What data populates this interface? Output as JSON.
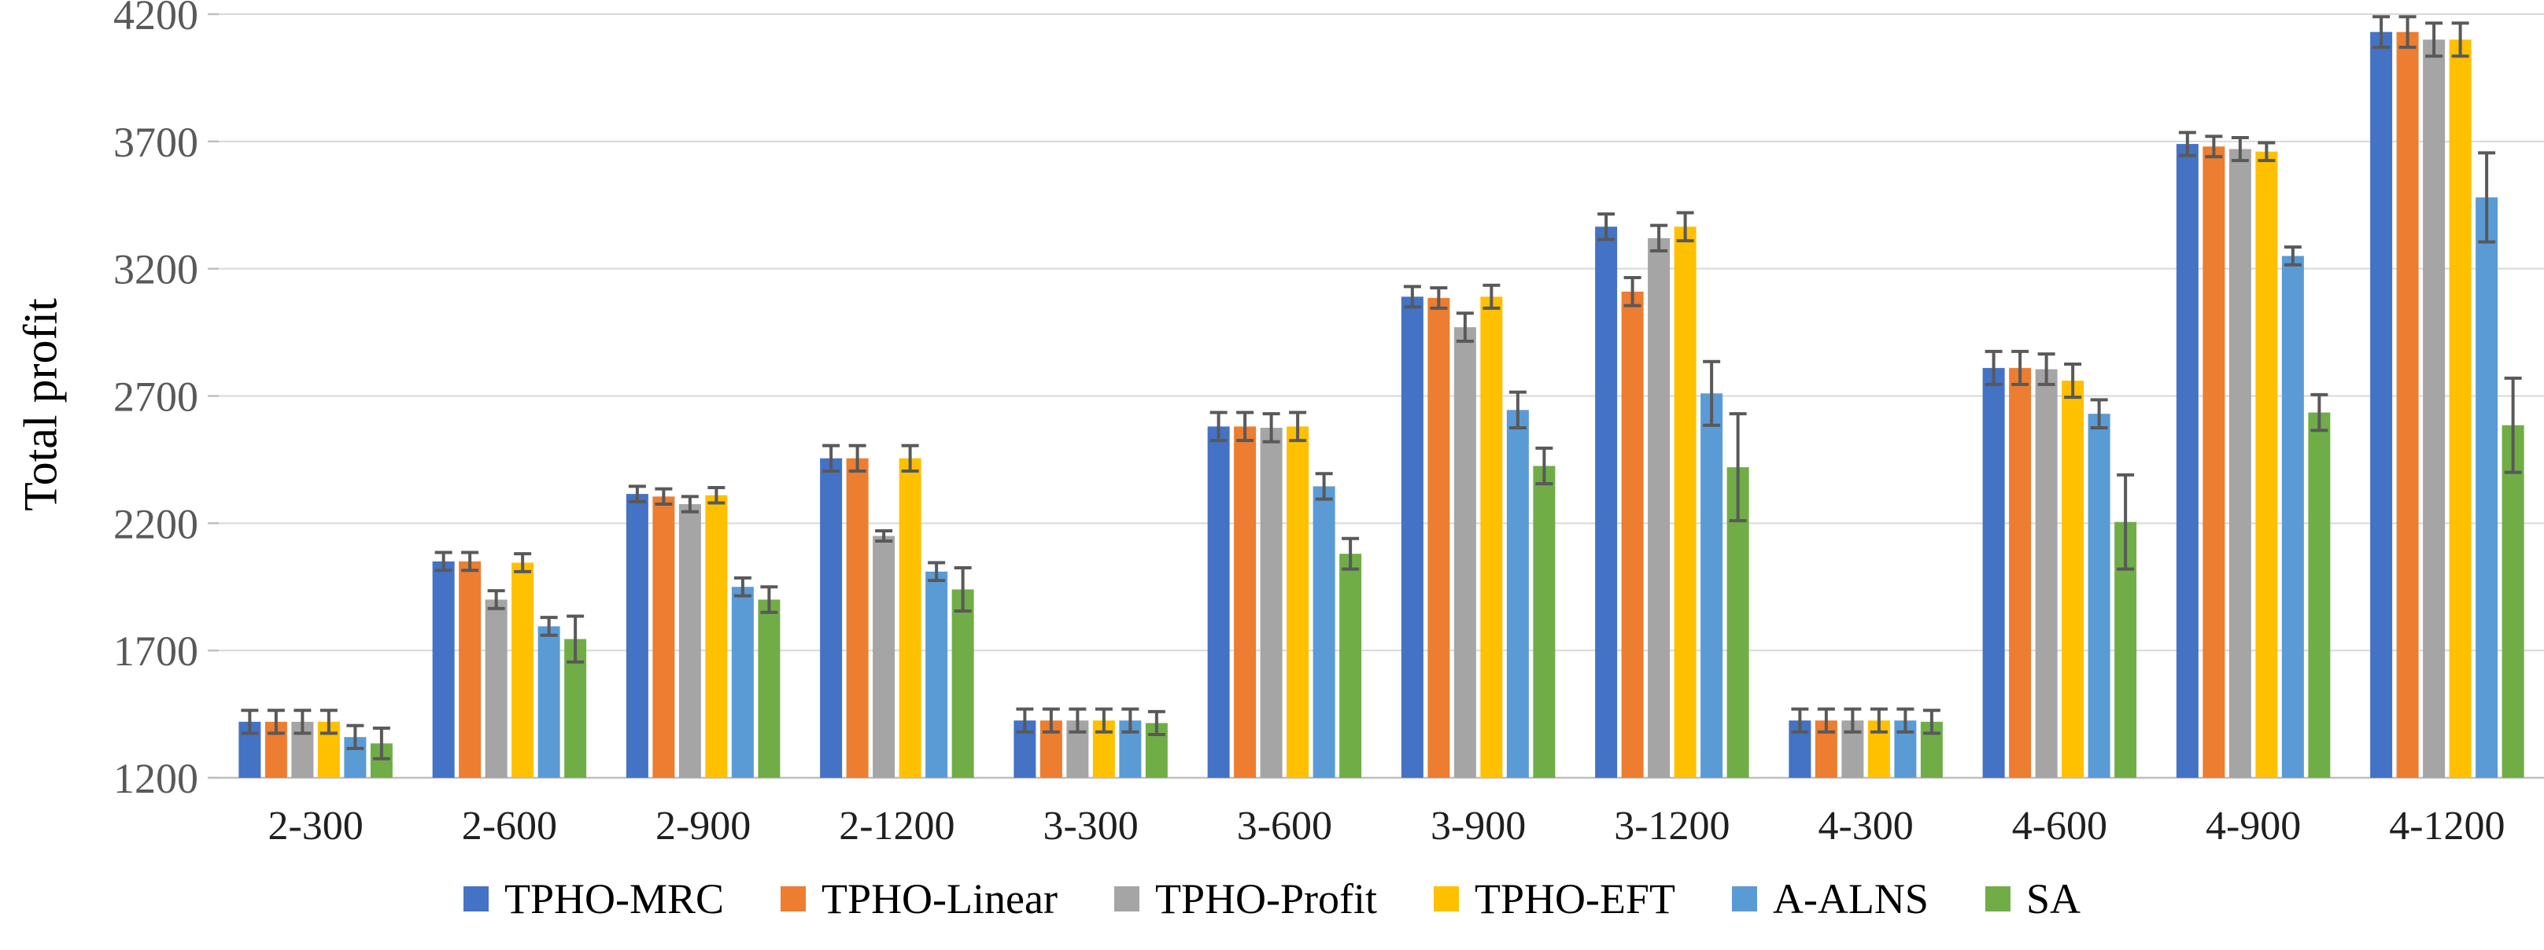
{
  "chart_data": {
    "type": "bar",
    "title": "",
    "ylabel": "Total profit",
    "xlabel": "",
    "ylim": [
      1200,
      4200
    ],
    "yticks": [
      1200,
      1700,
      2200,
      2700,
      3200,
      3700,
      4200
    ],
    "grid": true,
    "legend_position": "bottom",
    "error_bars": true,
    "categories": [
      "2-300",
      "2-600",
      "2-900",
      "2-1200",
      "3-300",
      "3-600",
      "3-900",
      "3-1200",
      "4-300",
      "4-600",
      "4-900",
      "4-1200"
    ],
    "series": [
      {
        "name": "TPHO-MRC",
        "color": "#4472C4",
        "values": [
          1420,
          2050,
          2315,
          2455,
          1425,
          2580,
          3090,
          3365,
          1425,
          2810,
          3690,
          4130
        ],
        "errors": [
          45,
          35,
          30,
          50,
          45,
          55,
          40,
          50,
          45,
          65,
          45,
          60
        ]
      },
      {
        "name": "TPHO-Linear",
        "color": "#ED7D31",
        "values": [
          1420,
          2050,
          2305,
          2455,
          1425,
          2580,
          3085,
          3110,
          1425,
          2810,
          3680,
          4130
        ],
        "errors": [
          45,
          35,
          30,
          50,
          45,
          55,
          40,
          55,
          45,
          65,
          40,
          60
        ]
      },
      {
        "name": "TPHO-Profit",
        "color": "#A5A5A5",
        "values": [
          1420,
          1900,
          2275,
          2150,
          1425,
          2575,
          2970,
          3320,
          1425,
          2805,
          3670,
          4100
        ],
        "errors": [
          45,
          35,
          30,
          20,
          45,
          55,
          55,
          50,
          45,
          60,
          45,
          65
        ]
      },
      {
        "name": "TPHO-EFT",
        "color": "#FFC000",
        "values": [
          1420,
          2045,
          2310,
          2455,
          1425,
          2580,
          3090,
          3365,
          1425,
          2760,
          3660,
          4100
        ],
        "errors": [
          45,
          35,
          30,
          50,
          45,
          55,
          45,
          55,
          45,
          65,
          35,
          65
        ]
      },
      {
        "name": "A-ALNS",
        "color": "#5B9BD5",
        "values": [
          1360,
          1795,
          1950,
          2010,
          1425,
          2345,
          2645,
          2710,
          1425,
          2630,
          3250,
          3480
        ],
        "errors": [
          45,
          35,
          35,
          35,
          45,
          50,
          70,
          125,
          45,
          55,
          35,
          175
        ]
      },
      {
        "name": "SA",
        "color": "#70AD47",
        "values": [
          1335,
          1745,
          1900,
          1940,
          1415,
          2080,
          2425,
          2420,
          1420,
          2205,
          2635,
          2585
        ],
        "errors": [
          60,
          90,
          50,
          85,
          45,
          60,
          70,
          210,
          45,
          185,
          70,
          185
        ]
      }
    ],
    "colors": {
      "gridline": "#D9D9D9",
      "axis_line": "#BFBFBF",
      "error_bar": "#595959",
      "y_tick_text": "#595959",
      "x_tick_text": "#1F1F1F"
    }
  }
}
